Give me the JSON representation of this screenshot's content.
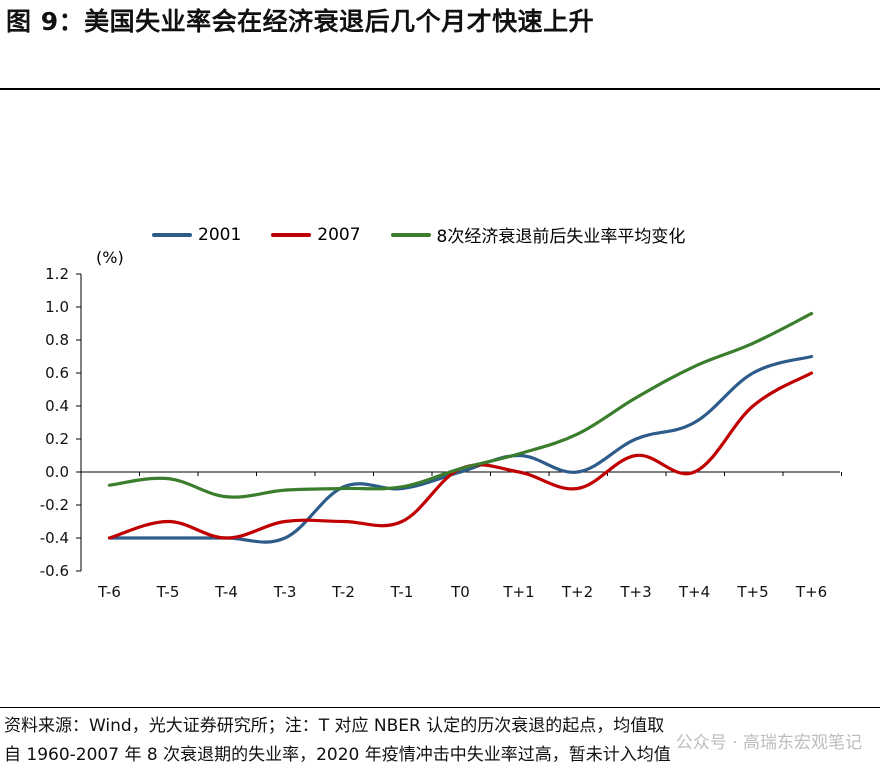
{
  "title": "图 9：美国失业率会在经济衰退后几个月才快速上升",
  "source_line1": "资料来源：Wind，光大证券研究所；注：T 对应 NBER 认定的历次衰退的起点，均值取",
  "source_line2": "自 1960-2007 年 8 次衰退期的失业率，2020 年疫情冲击中失业率过高，暂未计入均值",
  "watermark": "公众号 · 高瑞东宏观笔记",
  "colors": {
    "s2001": "#2E5C8A",
    "s2007": "#C00000",
    "avg": "#3A7D2C"
  },
  "chart_data": {
    "type": "line",
    "title": "",
    "ylabel": "(%)",
    "xlabel": "",
    "ylim": [
      -0.6,
      1.2
    ],
    "yticks": [
      "1.2",
      "1.0",
      "0.8",
      "0.6",
      "0.4",
      "0.2",
      "0.0",
      "-0.2",
      "-0.4",
      "-0.6"
    ],
    "ytick_values": [
      1.2,
      1.0,
      0.8,
      0.6,
      0.4,
      0.2,
      0.0,
      -0.2,
      -0.4,
      -0.6
    ],
    "categories": [
      "T-6",
      "T-5",
      "T-4",
      "T-3",
      "T-2",
      "T-1",
      "T0",
      "T+1",
      "T+2",
      "T+3",
      "T+4",
      "T+5",
      "T+6"
    ],
    "legend_position": "top",
    "series": [
      {
        "name": "2001",
        "color_key": "s2001",
        "values": [
          -0.4,
          -0.4,
          -0.4,
          -0.4,
          -0.09,
          -0.1,
          0.0,
          0.1,
          0.0,
          0.2,
          0.3,
          0.6,
          0.7
        ]
      },
      {
        "name": "2007",
        "color_key": "s2007",
        "values": [
          -0.4,
          -0.3,
          -0.4,
          -0.3,
          -0.3,
          -0.3,
          0.02,
          0.0,
          -0.1,
          0.1,
          0.0,
          0.4,
          0.6
        ]
      },
      {
        "name": "8次经济衰退前后失业率平均变化",
        "color_key": "avg",
        "values": [
          -0.08,
          -0.04,
          -0.15,
          -0.11,
          -0.1,
          -0.09,
          0.02,
          0.11,
          0.23,
          0.45,
          0.64,
          0.78,
          0.96
        ]
      }
    ]
  }
}
